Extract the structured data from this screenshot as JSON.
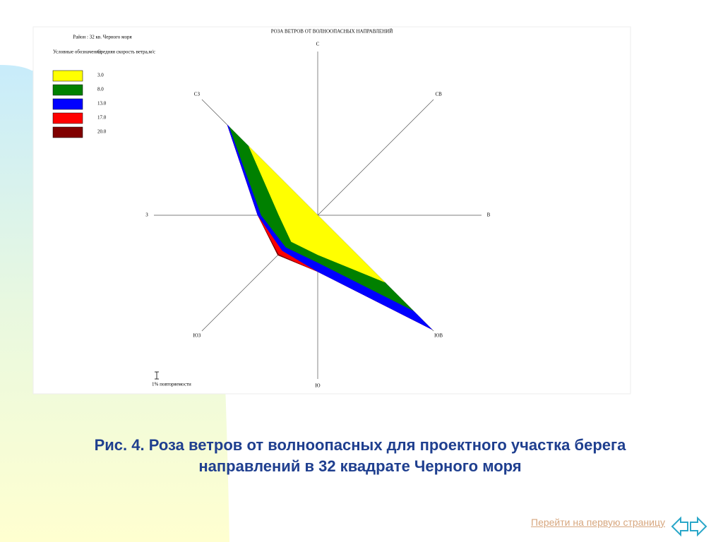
{
  "chart_data": {
    "type": "windrose",
    "title": "РОЗА ВЕТРОВ ОТ ВОЛНООПАСНЫХ НАПРАВЛЕНИЙ",
    "subtitle": "Район : 32 кв. Черного моря",
    "legend_header_left": "Условные обозначения",
    "legend_header_right": "Средняя скорость ветра,м/с",
    "scale_label": "1% повторяемости",
    "categories": [
      "С",
      "СВ",
      "В",
      "ЮВ",
      "Ю",
      "ЮЗ",
      "З",
      "СЗ"
    ],
    "series": [
      {
        "name": "3.0",
        "color": "#ffff00",
        "values": [
          0,
          0,
          0,
          13.4,
          5.6,
          5.3,
          5.5,
          13.8
        ]
      },
      {
        "name": "8.0",
        "color": "#008000",
        "values": [
          0,
          0,
          0,
          5.7,
          1.1,
          1.1,
          2.5,
          3.9
        ]
      },
      {
        "name": "13.0",
        "color": "#0000ff",
        "values": [
          0,
          0,
          0,
          3.8,
          1.3,
          0.7,
          0.5,
          0.4
        ]
      },
      {
        "name": "17.0",
        "color": "#ff0000",
        "values": [
          0,
          0,
          0,
          0,
          0,
          0.7,
          0,
          0
        ]
      },
      {
        "name": "20.0",
        "color": "#800000",
        "values": [
          0,
          0,
          0,
          0,
          0,
          0.2,
          0,
          0
        ]
      }
    ]
  },
  "caption": "Рис. 4. Роза ветров от волноопасных для проектного участка берега направлений в  32 квадрате  Черного моря",
  "link": "Перейти на первую страницу"
}
